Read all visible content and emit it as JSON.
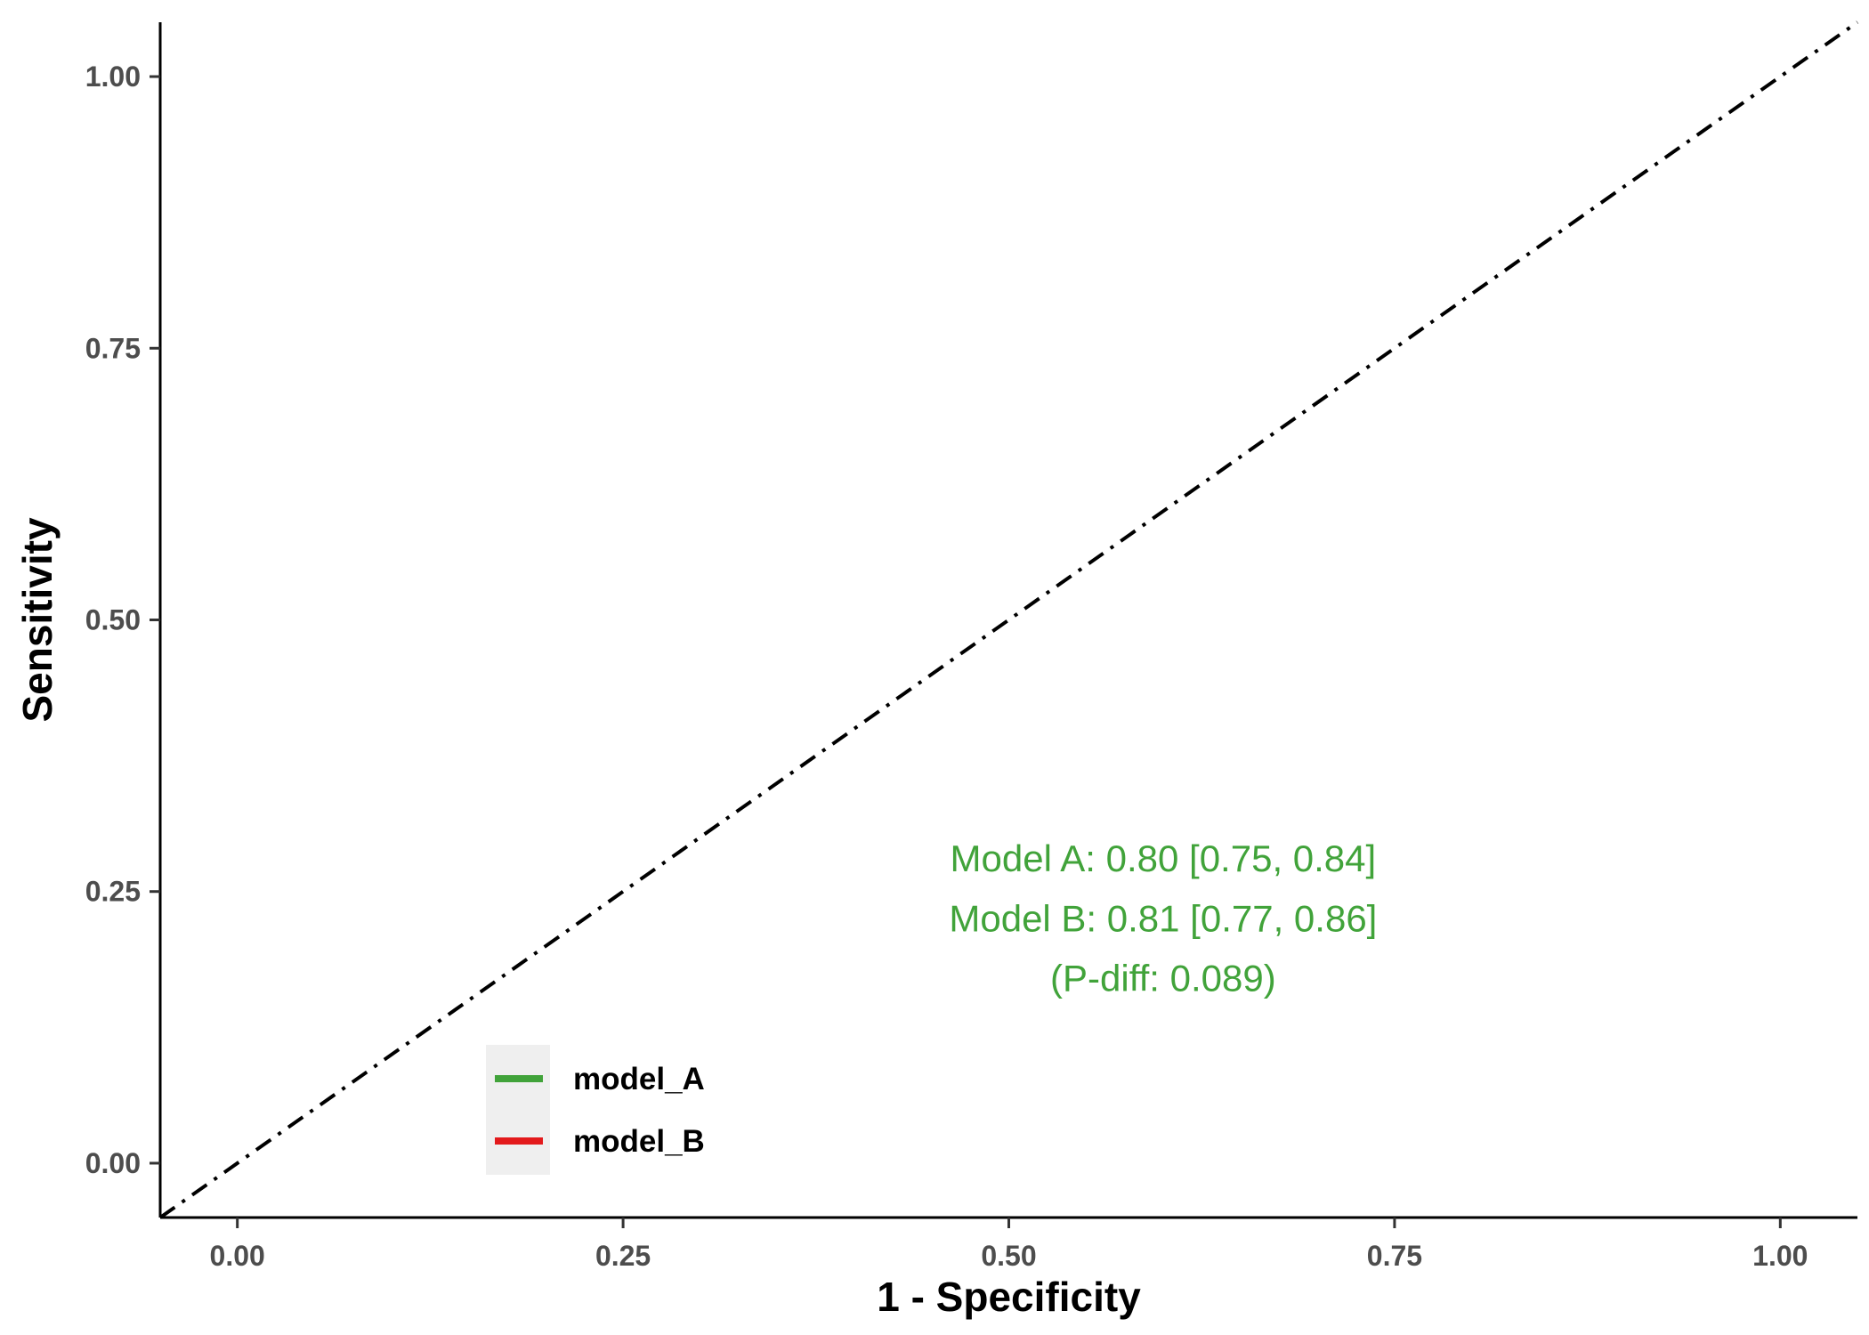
{
  "chart_data": {
    "type": "line",
    "title": "",
    "xlabel": "1 - Specificity",
    "ylabel": "Sensitivity",
    "xlim": [
      -0.05,
      1.05
    ],
    "ylim": [
      -0.05,
      1.05
    ],
    "x_ticks": [
      "0.00",
      "0.25",
      "0.50",
      "0.75",
      "1.00"
    ],
    "y_ticks": [
      "0.00",
      "0.25",
      "0.50",
      "0.75",
      "1.00"
    ],
    "grid": false,
    "reference_line": {
      "x": [
        -0.05,
        1.05
      ],
      "y": [
        -0.05,
        1.05
      ],
      "style": "dotdash",
      "color": "#000000"
    },
    "series": [
      {
        "name": "model_A",
        "color": "#41a33a",
        "x": [],
        "y": []
      },
      {
        "name": "model_B",
        "color": "#e31a1c",
        "x": [],
        "y": []
      }
    ],
    "legend": {
      "position": "bottom-left",
      "background": "#efefef"
    },
    "annotations": {
      "color": "#41a33a",
      "lines": [
        "Model A: 0.80 [0.75, 0.84]",
        "Model B: 0.81 [0.77, 0.86]",
        "(P-diff: 0.089)"
      ],
      "x": 0.6,
      "y": [
        0.28,
        0.225,
        0.17
      ]
    }
  }
}
